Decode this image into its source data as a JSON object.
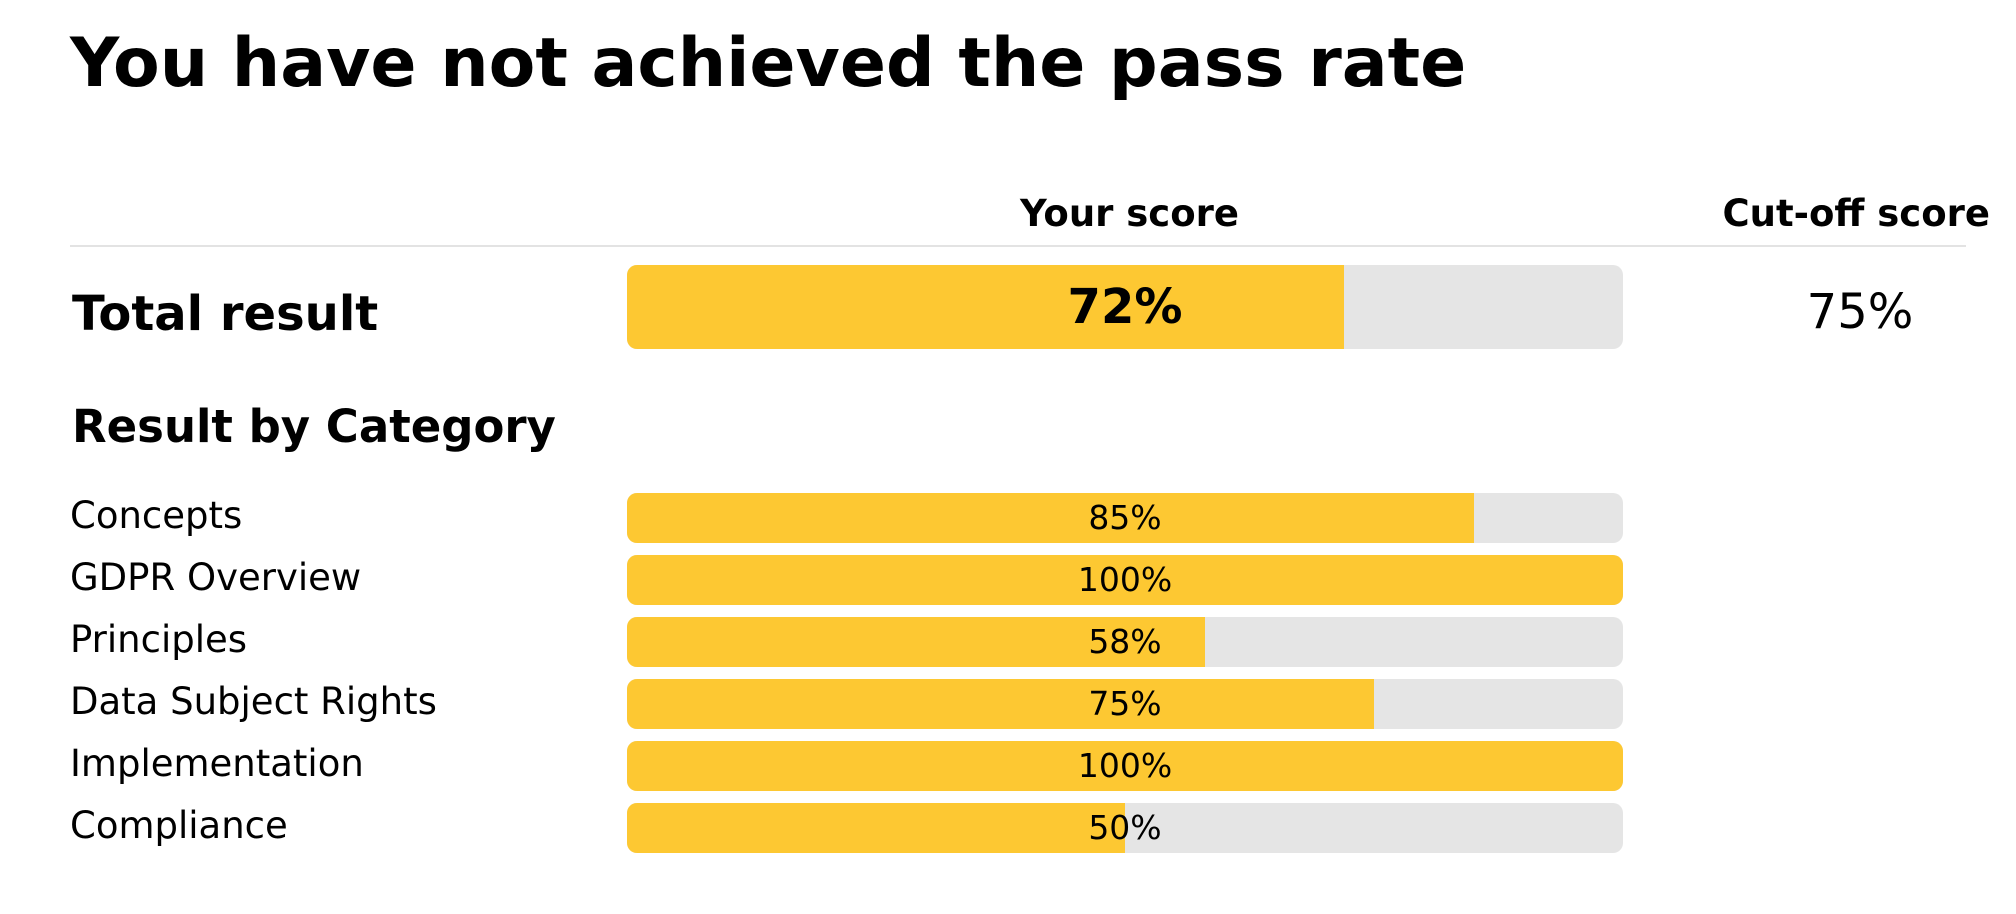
{
  "title": "You have not achieved the pass rate",
  "headers": {
    "your_score": "Your score",
    "cutoff_score": "Cut-off score"
  },
  "total": {
    "label": "Total result",
    "score": 72,
    "score_text": "72%",
    "cutoff_text": "75%"
  },
  "category_section_title": "Result by Category",
  "colors": {
    "fill": "#fdc832",
    "track": "#e5e5e5"
  },
  "categories": [
    {
      "label": "Concepts",
      "score": 85,
      "score_text": "85%"
    },
    {
      "label": "GDPR Overview",
      "score": 100,
      "score_text": "100%"
    },
    {
      "label": "Principles",
      "score": 58,
      "score_text": "58%"
    },
    {
      "label": "Data Subject Rights",
      "score": 75,
      "score_text": "75%"
    },
    {
      "label": "Implementation",
      "score": 100,
      "score_text": "100%"
    },
    {
      "label": "Compliance",
      "score": 50,
      "score_text": "50%"
    }
  ]
}
